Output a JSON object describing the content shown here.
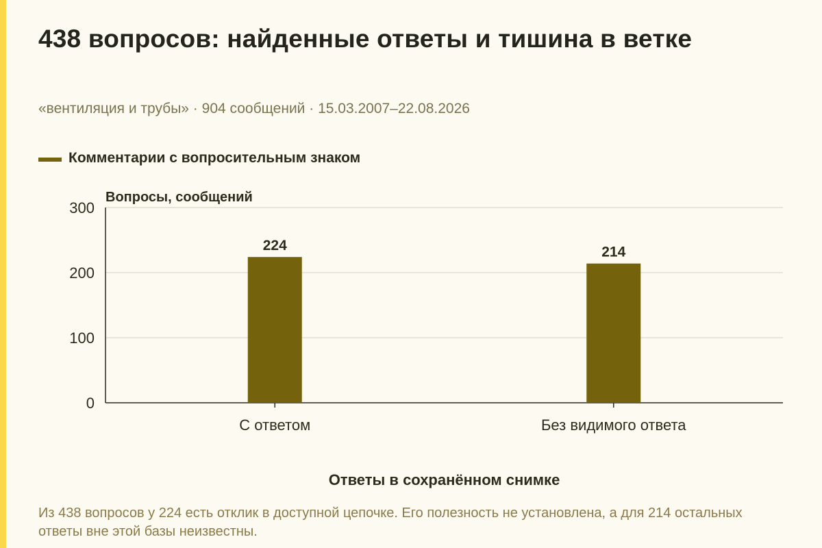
{
  "title": "438 вопросов: найденные ответы и тишина в ветке",
  "subtitle": "«вентиляция и трубы» · 904 сообщений · 15.03.2007–22.08.2026",
  "note": "Из 438 вопросов у 224 есть отклик в доступной цепочке. Его полезность не установлена, а для 214 остальных ответы вне этой базы неизвестны.",
  "colors": {
    "bar": "#74630c",
    "accent": "#f9d84a",
    "background": "#fdfbf1"
  },
  "chart_data": {
    "type": "bar",
    "categories": [
      "С ответом",
      "Без видимого ответа"
    ],
    "series": [
      {
        "name": "Комментарии с вопросительным знаком",
        "values": [
          224,
          214
        ]
      }
    ],
    "xlabel": "Ответы в сохранённом снимке",
    "ylabel": "Вопросы, сообщений",
    "ylim": [
      0,
      300
    ],
    "yticks": [
      0,
      100,
      200,
      300
    ],
    "grid": true,
    "legend_position": "top-left",
    "data_labels": true
  }
}
